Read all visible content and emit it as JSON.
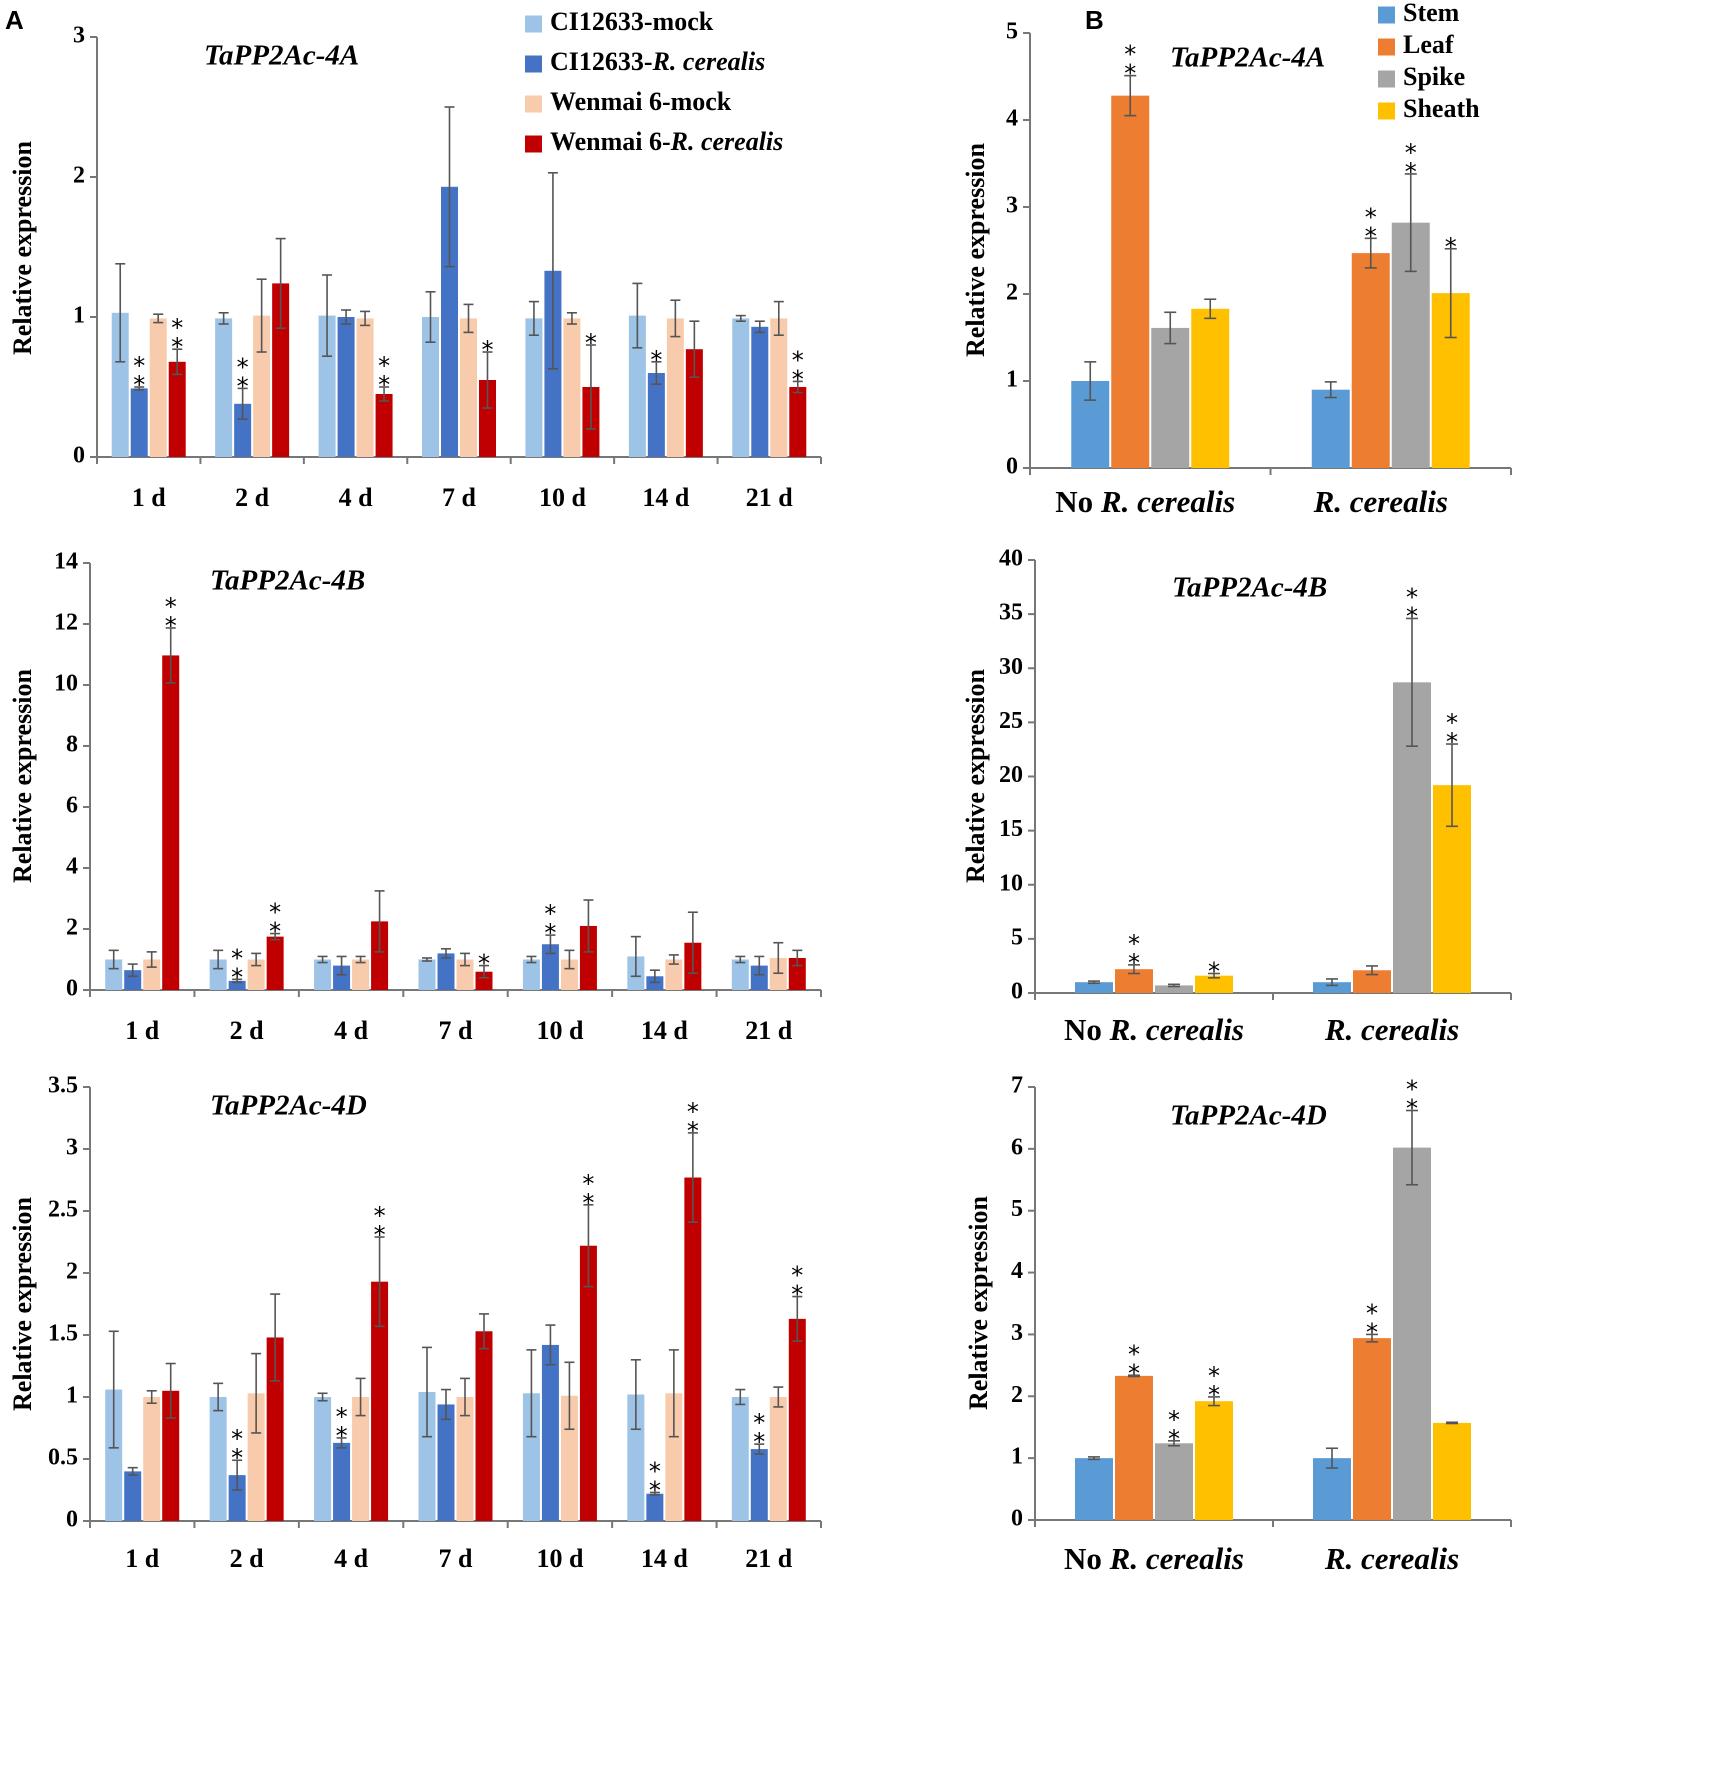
{
  "panel_labels": [
    "A",
    "B"
  ],
  "colors": {
    "ci_mock": "#9DC3E6",
    "ci_rc": "#4472C4",
    "wm_mock": "#F8CBAD",
    "wm_rc": "#C00000",
    "stem": "#5B9BD5",
    "leaf": "#ED7D31",
    "spike": "#A5A5A5",
    "sheath": "#FFC000"
  },
  "legend_a": [
    {
      "label": "CI12633-mock",
      "color_key": "ci_mock"
    },
    {
      "label": "CI12633-R. cerealis",
      "color_key": "ci_rc"
    },
    {
      "label": "Wenmai 6-mock",
      "color_key": "wm_mock"
    },
    {
      "label": "Wenmai 6-R. cerealis",
      "color_key": "wm_rc"
    }
  ],
  "legend_b": [
    {
      "label": "Stem",
      "color_key": "stem"
    },
    {
      "label": "Leaf",
      "color_key": "leaf"
    },
    {
      "label": "Spike",
      "color_key": "spike"
    },
    {
      "label": "Sheath",
      "color_key": "sheath"
    }
  ],
  "chart_data": [
    {
      "id": "A-4A",
      "panel": "A",
      "type": "bar",
      "title": "TaPP2Ac-4A",
      "ylabel": "Relative expression",
      "ylim": [
        0,
        3
      ],
      "yticks": [
        "0",
        "1",
        "2",
        "3"
      ],
      "categories": [
        "1 d",
        "2 d",
        "4 d",
        "7 d",
        "10 d",
        "14 d",
        "21 d"
      ],
      "series": [
        {
          "name": "CI12633-mock",
          "color_key": "ci_mock",
          "values": [
            1.03,
            0.99,
            1.01,
            1.0,
            0.99,
            1.01,
            0.99
          ],
          "errors": [
            0.35,
            0.04,
            0.29,
            0.18,
            0.12,
            0.23,
            0.02
          ],
          "sig": [
            "",
            "",
            "",
            "",
            "",
            "",
            ""
          ]
        },
        {
          "name": "CI12633-R. cerealis",
          "color_key": "ci_rc",
          "values": [
            0.49,
            0.38,
            1.0,
            1.93,
            1.33,
            0.6,
            0.93
          ],
          "errors": [
            0.01,
            0.11,
            0.05,
            0.57,
            0.7,
            0.08,
            0.04
          ],
          "sig": [
            "**",
            "**",
            "",
            "",
            "",
            "*",
            ""
          ]
        },
        {
          "name": "Wenmai 6-mock",
          "color_key": "wm_mock",
          "values": [
            0.99,
            1.01,
            0.99,
            0.99,
            0.99,
            0.99,
            0.99
          ],
          "errors": [
            0.03,
            0.26,
            0.05,
            0.1,
            0.04,
            0.13,
            0.12
          ],
          "sig": [
            "",
            "",
            "",
            "",
            "",
            "",
            ""
          ]
        },
        {
          "name": "Wenmai 6-R. cerealis",
          "color_key": "wm_rc",
          "values": [
            0.68,
            1.24,
            0.45,
            0.55,
            0.5,
            0.77,
            0.5
          ],
          "errors": [
            0.09,
            0.32,
            0.05,
            0.2,
            0.3,
            0.2,
            0.04
          ],
          "sig": [
            "**",
            "",
            "**",
            "*",
            "*",
            "",
            "**"
          ]
        }
      ]
    },
    {
      "id": "A-4B",
      "panel": "A",
      "type": "bar",
      "title": "TaPP2Ac-4B",
      "ylabel": "Relative expression",
      "ylim": [
        0,
        14
      ],
      "yticks": [
        "0",
        "2",
        "4",
        "6",
        "8",
        "10",
        "12",
        "14"
      ],
      "categories": [
        "1 d",
        "2 d",
        "4 d",
        "7 d",
        "10 d",
        "14 d",
        "21 d"
      ],
      "series": [
        {
          "name": "CI12633-mock",
          "color_key": "ci_mock",
          "values": [
            1.0,
            1.0,
            1.0,
            1.0,
            1.0,
            1.1,
            1.0
          ],
          "errors": [
            0.3,
            0.3,
            0.1,
            0.05,
            0.1,
            0.65,
            0.1
          ],
          "sig": [
            "",
            "",
            "",
            "",
            "",
            "",
            ""
          ]
        },
        {
          "name": "CI12633-R. cerealis",
          "color_key": "ci_rc",
          "values": [
            0.65,
            0.3,
            0.8,
            1.2,
            1.5,
            0.45,
            0.8
          ],
          "errors": [
            0.2,
            0.05,
            0.3,
            0.15,
            0.3,
            0.2,
            0.3
          ],
          "sig": [
            "",
            "**",
            "",
            "",
            "**",
            "",
            ""
          ]
        },
        {
          "name": "Wenmai 6-mock",
          "color_key": "wm_mock",
          "values": [
            1.0,
            1.0,
            1.0,
            1.0,
            1.0,
            1.0,
            1.05
          ],
          "errors": [
            0.25,
            0.2,
            0.1,
            0.2,
            0.3,
            0.15,
            0.5
          ],
          "sig": [
            "",
            "",
            "",
            "",
            "",
            "",
            ""
          ]
        },
        {
          "name": "Wenmai 6-R. cerealis",
          "color_key": "wm_rc",
          "values": [
            10.97,
            1.75,
            2.25,
            0.6,
            2.1,
            1.55,
            1.05
          ],
          "errors": [
            0.9,
            0.1,
            1.0,
            0.2,
            0.85,
            1.0,
            0.25
          ],
          "sig": [
            "**",
            "**",
            "",
            "*",
            "",
            "",
            ""
          ]
        }
      ]
    },
    {
      "id": "A-4D",
      "panel": "A",
      "type": "bar",
      "title": "TaPP2Ac-4D",
      "ylabel": "Relative expression",
      "ylim": [
        0,
        3.5
      ],
      "yticks": [
        "0",
        "0.5",
        "1",
        "1.5",
        "2",
        "2.5",
        "3",
        "3.5"
      ],
      "categories": [
        "1 d",
        "2 d",
        "4 d",
        "7 d",
        "10 d",
        "14 d",
        "21 d"
      ],
      "series": [
        {
          "name": "CI12633-mock",
          "color_key": "ci_mock",
          "values": [
            1.06,
            1.0,
            1.0,
            1.04,
            1.03,
            1.02,
            1.0
          ],
          "errors": [
            0.47,
            0.11,
            0.03,
            0.36,
            0.35,
            0.28,
            0.06
          ],
          "sig": [
            "",
            "",
            "",
            "",
            "",
            "",
            ""
          ]
        },
        {
          "name": "CI12633-R. cerealis",
          "color_key": "ci_rc",
          "values": [
            0.4,
            0.37,
            0.63,
            0.94,
            1.42,
            0.22,
            0.58
          ],
          "errors": [
            0.03,
            0.12,
            0.04,
            0.12,
            0.16,
            0.01,
            0.04
          ],
          "sig": [
            "",
            "**",
            "**",
            "",
            "",
            "**",
            "**"
          ]
        },
        {
          "name": "Wenmai 6-mock",
          "color_key": "wm_mock",
          "values": [
            1.0,
            1.03,
            1.0,
            1.0,
            1.01,
            1.03,
            1.0
          ],
          "errors": [
            0.05,
            0.32,
            0.15,
            0.15,
            0.27,
            0.35,
            0.08
          ],
          "sig": [
            "",
            "",
            "",
            "",
            "",
            "",
            ""
          ]
        },
        {
          "name": "Wenmai 6-R. cerealis",
          "color_key": "wm_rc",
          "values": [
            1.05,
            1.48,
            1.93,
            1.53,
            2.22,
            2.77,
            1.63
          ],
          "errors": [
            0.22,
            0.35,
            0.36,
            0.14,
            0.33,
            0.36,
            0.18
          ],
          "sig": [
            "",
            "",
            "**",
            "",
            "**",
            "**",
            "**"
          ]
        }
      ]
    },
    {
      "id": "B-4A",
      "panel": "B",
      "type": "bar",
      "title": "TaPP2Ac-4A",
      "ylabel": "Relative expression",
      "ylim": [
        0,
        5
      ],
      "yticks": [
        "0",
        "1",
        "2",
        "3",
        "4",
        "5"
      ],
      "categories": [
        "No R. cerealis",
        "R. cerealis"
      ],
      "series": [
        {
          "name": "Stem",
          "color_key": "stem",
          "values": [
            1.0,
            0.9
          ],
          "errors": [
            0.22,
            0.09
          ],
          "sig": [
            "",
            ""
          ]
        },
        {
          "name": "Leaf",
          "color_key": "leaf",
          "values": [
            4.28,
            2.47
          ],
          "errors": [
            0.23,
            0.17
          ],
          "sig": [
            "**",
            "**"
          ]
        },
        {
          "name": "Spike",
          "color_key": "spike",
          "values": [
            1.61,
            2.82
          ],
          "errors": [
            0.18,
            0.56
          ],
          "sig": [
            "",
            "**"
          ]
        },
        {
          "name": "Sheath",
          "color_key": "sheath",
          "values": [
            1.83,
            2.01
          ],
          "errors": [
            0.11,
            0.51
          ],
          "sig": [
            "",
            "*"
          ]
        }
      ]
    },
    {
      "id": "B-4B",
      "panel": "B",
      "type": "bar",
      "title": "TaPP2Ac-4B",
      "ylabel": "Relative expression",
      "ylim": [
        0,
        40
      ],
      "yticks": [
        "0",
        "5",
        "10",
        "15",
        "20",
        "25",
        "30",
        "35",
        "40"
      ],
      "categories": [
        "No R. cerealis",
        "R. cerealis"
      ],
      "series": [
        {
          "name": "Stem",
          "color_key": "stem",
          "values": [
            1.0,
            1.0
          ],
          "errors": [
            0.1,
            0.3
          ],
          "sig": [
            "",
            ""
          ]
        },
        {
          "name": "Leaf",
          "color_key": "leaf",
          "values": [
            2.2,
            2.1
          ],
          "errors": [
            0.4,
            0.4
          ],
          "sig": [
            "**",
            ""
          ]
        },
        {
          "name": "Spike",
          "color_key": "spike",
          "values": [
            0.7,
            28.7
          ],
          "errors": [
            0.1,
            5.9
          ],
          "sig": [
            "",
            "**"
          ]
        },
        {
          "name": "Sheath",
          "color_key": "sheath",
          "values": [
            1.6,
            19.2
          ],
          "errors": [
            0.2,
            3.8
          ],
          "sig": [
            "*",
            "**"
          ]
        }
      ]
    },
    {
      "id": "B-4D",
      "panel": "B",
      "type": "bar",
      "title": "TaPP2Ac-4D",
      "ylabel": "Relative expression",
      "ylim": [
        0,
        7
      ],
      "yticks": [
        "0",
        "1",
        "2",
        "3",
        "4",
        "5",
        "6",
        "7"
      ],
      "categories": [
        "No R. cerealis",
        "R. cerealis"
      ],
      "series": [
        {
          "name": "Stem",
          "color_key": "stem",
          "values": [
            1.0,
            1.0
          ],
          "errors": [
            0.02,
            0.16
          ],
          "sig": [
            "",
            ""
          ]
        },
        {
          "name": "Leaf",
          "color_key": "leaf",
          "values": [
            2.33,
            2.94
          ],
          "errors": [
            0.01,
            0.06
          ],
          "sig": [
            "**",
            "**"
          ]
        },
        {
          "name": "Spike",
          "color_key": "spike",
          "values": [
            1.24,
            6.02
          ],
          "errors": [
            0.04,
            0.6
          ],
          "sig": [
            "**",
            "**"
          ]
        },
        {
          "name": "Sheath",
          "color_key": "sheath",
          "values": [
            1.92,
            1.57
          ],
          "errors": [
            0.07,
            0.01
          ],
          "sig": [
            "**",
            ""
          ]
        }
      ]
    }
  ]
}
